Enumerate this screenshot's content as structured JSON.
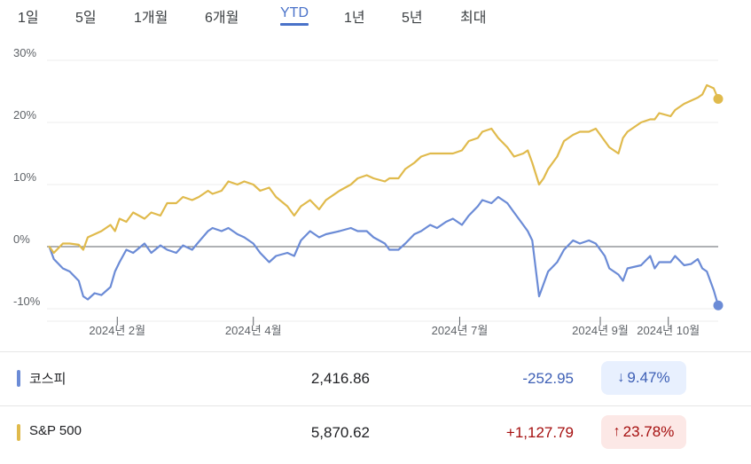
{
  "tabs": [
    {
      "label": "1일",
      "active": false
    },
    {
      "label": "5일",
      "active": false
    },
    {
      "label": "1개월",
      "active": false
    },
    {
      "label": "6개월",
      "active": false
    },
    {
      "label": "YTD",
      "active": true
    },
    {
      "label": "1년",
      "active": false
    },
    {
      "label": "5년",
      "active": false
    },
    {
      "label": "최대",
      "active": false
    }
  ],
  "chart_data": {
    "type": "line",
    "xlim": [
      "2024-01-01",
      "2024-10-23"
    ],
    "ylim": [
      -10,
      30
    ],
    "y_ticks": [
      {
        "value": 30,
        "label": "30%"
      },
      {
        "value": 20,
        "label": "20%"
      },
      {
        "value": 10,
        "label": "10%"
      },
      {
        "value": 0,
        "label": "0%"
      },
      {
        "value": -10,
        "label": "-10%"
      }
    ],
    "x_ticks": [
      {
        "date": "2024-02-01",
        "label": "2024년 2월"
      },
      {
        "date": "2024-04-01",
        "label": "2024년 4월"
      },
      {
        "date": "2024-07-01",
        "label": "2024년 7월"
      },
      {
        "date": "2024-09-01",
        "label": "2024년 9월"
      },
      {
        "date": "2024-10-01",
        "label": "2024년 10월"
      }
    ],
    "grid": true,
    "series": [
      {
        "name": "코스피",
        "color": "#6b8bd6",
        "points": [
          [
            "2024-01-02",
            0
          ],
          [
            "2024-01-04",
            -2.0
          ],
          [
            "2024-01-08",
            -3.5
          ],
          [
            "2024-01-11",
            -4.0
          ],
          [
            "2024-01-15",
            -5.5
          ],
          [
            "2024-01-17",
            -8.0
          ],
          [
            "2024-01-19",
            -8.5
          ],
          [
            "2024-01-22",
            -7.5
          ],
          [
            "2024-01-25",
            -7.8
          ],
          [
            "2024-01-29",
            -6.5
          ],
          [
            "2024-01-31",
            -4.0
          ],
          [
            "2024-02-02",
            -2.5
          ],
          [
            "2024-02-05",
            -0.5
          ],
          [
            "2024-02-08",
            -1.0
          ],
          [
            "2024-02-13",
            0.5
          ],
          [
            "2024-02-16",
            -1.0
          ],
          [
            "2024-02-20",
            0.2
          ],
          [
            "2024-02-23",
            -0.5
          ],
          [
            "2024-02-27",
            -1.0
          ],
          [
            "2024-03-01",
            0.2
          ],
          [
            "2024-03-05",
            -0.5
          ],
          [
            "2024-03-08",
            0.8
          ],
          [
            "2024-03-12",
            2.5
          ],
          [
            "2024-03-14",
            3.0
          ],
          [
            "2024-03-18",
            2.5
          ],
          [
            "2024-03-21",
            3.0
          ],
          [
            "2024-03-25",
            2.0
          ],
          [
            "2024-03-28",
            1.5
          ],
          [
            "2024-04-01",
            0.5
          ],
          [
            "2024-04-04",
            -1.0
          ],
          [
            "2024-04-08",
            -2.5
          ],
          [
            "2024-04-11",
            -1.5
          ],
          [
            "2024-04-16",
            -1.0
          ],
          [
            "2024-04-19",
            -1.5
          ],
          [
            "2024-04-22",
            1.0
          ],
          [
            "2024-04-26",
            2.5
          ],
          [
            "2024-04-30",
            1.5
          ],
          [
            "2024-05-03",
            2.0
          ],
          [
            "2024-05-09",
            2.5
          ],
          [
            "2024-05-14",
            3.0
          ],
          [
            "2024-05-17",
            2.5
          ],
          [
            "2024-05-21",
            2.5
          ],
          [
            "2024-05-24",
            1.5
          ],
          [
            "2024-05-29",
            0.5
          ],
          [
            "2024-05-31",
            -0.5
          ],
          [
            "2024-06-04",
            -0.5
          ],
          [
            "2024-06-07",
            0.5
          ],
          [
            "2024-06-11",
            2.0
          ],
          [
            "2024-06-14",
            2.5
          ],
          [
            "2024-06-18",
            3.5
          ],
          [
            "2024-06-21",
            3.0
          ],
          [
            "2024-06-25",
            4.0
          ],
          [
            "2024-06-28",
            4.5
          ],
          [
            "2024-07-02",
            3.5
          ],
          [
            "2024-07-05",
            5.0
          ],
          [
            "2024-07-09",
            6.5
          ],
          [
            "2024-07-11",
            7.5
          ],
          [
            "2024-07-15",
            7.0
          ],
          [
            "2024-07-18",
            8.0
          ],
          [
            "2024-07-22",
            7.0
          ],
          [
            "2024-07-25",
            5.5
          ],
          [
            "2024-07-29",
            3.5
          ],
          [
            "2024-07-31",
            2.5
          ],
          [
            "2024-08-02",
            1.0
          ],
          [
            "2024-08-05",
            -8.0
          ],
          [
            "2024-08-07",
            -6.0
          ],
          [
            "2024-08-09",
            -4.0
          ],
          [
            "2024-08-13",
            -2.5
          ],
          [
            "2024-08-16",
            -0.5
          ],
          [
            "2024-08-20",
            1.0
          ],
          [
            "2024-08-23",
            0.5
          ],
          [
            "2024-08-27",
            1.0
          ],
          [
            "2024-08-30",
            0.5
          ],
          [
            "2024-09-03",
            -1.5
          ],
          [
            "2024-09-05",
            -3.5
          ],
          [
            "2024-09-09",
            -4.5
          ],
          [
            "2024-09-11",
            -5.5
          ],
          [
            "2024-09-13",
            -3.5
          ],
          [
            "2024-09-19",
            -3.0
          ],
          [
            "2024-09-23",
            -1.5
          ],
          [
            "2024-09-25",
            -3.5
          ],
          [
            "2024-09-27",
            -2.5
          ],
          [
            "2024-10-02",
            -2.5
          ],
          [
            "2024-10-04",
            -1.5
          ],
          [
            "2024-10-08",
            -3.0
          ],
          [
            "2024-10-11",
            -2.8
          ],
          [
            "2024-10-14",
            -2.0
          ],
          [
            "2024-10-16",
            -3.5
          ],
          [
            "2024-10-18",
            -4.0
          ],
          [
            "2024-10-21",
            -7.0
          ],
          [
            "2024-10-23",
            -9.47
          ]
        ]
      },
      {
        "name": "S&P 500",
        "color": "#e0ba4c",
        "points": [
          [
            "2024-01-02",
            0
          ],
          [
            "2024-01-04",
            -1.0
          ],
          [
            "2024-01-08",
            0.5
          ],
          [
            "2024-01-11",
            0.5
          ],
          [
            "2024-01-15",
            0.3
          ],
          [
            "2024-01-17",
            -0.5
          ],
          [
            "2024-01-19",
            1.5
          ],
          [
            "2024-01-22",
            2.0
          ],
          [
            "2024-01-25",
            2.5
          ],
          [
            "2024-01-29",
            3.5
          ],
          [
            "2024-01-31",
            2.5
          ],
          [
            "2024-02-02",
            4.5
          ],
          [
            "2024-02-05",
            4.0
          ],
          [
            "2024-02-08",
            5.5
          ],
          [
            "2024-02-13",
            4.5
          ],
          [
            "2024-02-16",
            5.5
          ],
          [
            "2024-02-20",
            5.0
          ],
          [
            "2024-02-23",
            7.0
          ],
          [
            "2024-02-27",
            7.0
          ],
          [
            "2024-03-01",
            8.0
          ],
          [
            "2024-03-05",
            7.5
          ],
          [
            "2024-03-08",
            8.0
          ],
          [
            "2024-03-12",
            9.0
          ],
          [
            "2024-03-14",
            8.5
          ],
          [
            "2024-03-18",
            9.0
          ],
          [
            "2024-03-21",
            10.5
          ],
          [
            "2024-03-25",
            10.0
          ],
          [
            "2024-03-28",
            10.5
          ],
          [
            "2024-04-01",
            10.0
          ],
          [
            "2024-04-04",
            9.0
          ],
          [
            "2024-04-08",
            9.5
          ],
          [
            "2024-04-11",
            8.0
          ],
          [
            "2024-04-16",
            6.5
          ],
          [
            "2024-04-19",
            5.0
          ],
          [
            "2024-04-22",
            6.5
          ],
          [
            "2024-04-26",
            7.5
          ],
          [
            "2024-04-30",
            6.0
          ],
          [
            "2024-05-03",
            7.5
          ],
          [
            "2024-05-09",
            9.0
          ],
          [
            "2024-05-14",
            10.0
          ],
          [
            "2024-05-17",
            11.0
          ],
          [
            "2024-05-21",
            11.5
          ],
          [
            "2024-05-24",
            11.0
          ],
          [
            "2024-05-29",
            10.5
          ],
          [
            "2024-05-31",
            11.0
          ],
          [
            "2024-06-04",
            11.0
          ],
          [
            "2024-06-07",
            12.5
          ],
          [
            "2024-06-11",
            13.5
          ],
          [
            "2024-06-14",
            14.5
          ],
          [
            "2024-06-18",
            15.0
          ],
          [
            "2024-06-21",
            15.0
          ],
          [
            "2024-06-25",
            15.0
          ],
          [
            "2024-06-28",
            15.0
          ],
          [
            "2024-07-02",
            15.5
          ],
          [
            "2024-07-05",
            17.0
          ],
          [
            "2024-07-09",
            17.5
          ],
          [
            "2024-07-11",
            18.5
          ],
          [
            "2024-07-15",
            19.0
          ],
          [
            "2024-07-18",
            17.5
          ],
          [
            "2024-07-22",
            16.0
          ],
          [
            "2024-07-25",
            14.5
          ],
          [
            "2024-07-29",
            15.0
          ],
          [
            "2024-07-31",
            15.5
          ],
          [
            "2024-08-02",
            13.5
          ],
          [
            "2024-08-05",
            10.0
          ],
          [
            "2024-08-07",
            11.0
          ],
          [
            "2024-08-09",
            12.5
          ],
          [
            "2024-08-13",
            14.5
          ],
          [
            "2024-08-16",
            17.0
          ],
          [
            "2024-08-20",
            18.0
          ],
          [
            "2024-08-23",
            18.5
          ],
          [
            "2024-08-27",
            18.5
          ],
          [
            "2024-08-30",
            19.0
          ],
          [
            "2024-09-03",
            17.0
          ],
          [
            "2024-09-05",
            16.0
          ],
          [
            "2024-09-09",
            15.0
          ],
          [
            "2024-09-11",
            17.5
          ],
          [
            "2024-09-13",
            18.5
          ],
          [
            "2024-09-19",
            20.0
          ],
          [
            "2024-09-23",
            20.5
          ],
          [
            "2024-09-25",
            20.5
          ],
          [
            "2024-09-27",
            21.5
          ],
          [
            "2024-10-02",
            21.0
          ],
          [
            "2024-10-04",
            22.0
          ],
          [
            "2024-10-08",
            23.0
          ],
          [
            "2024-10-11",
            23.5
          ],
          [
            "2024-10-14",
            24.0
          ],
          [
            "2024-10-16",
            24.5
          ],
          [
            "2024-10-18",
            26.0
          ],
          [
            "2024-10-21",
            25.5
          ],
          [
            "2024-10-23",
            23.78
          ]
        ]
      }
    ]
  },
  "rows": [
    {
      "name": "코스피",
      "color": "#6b8bd6",
      "price": "2,416.86",
      "change": "-252.95",
      "change_color": "#3d5fb5",
      "percent": "9.47%",
      "direction": "down",
      "arrow": "↓"
    },
    {
      "name": "S&P 500",
      "color": "#e0ba4c",
      "price": "5,870.62",
      "change": "+1,127.79",
      "change_color": "#a50e0e",
      "percent": "23.78%",
      "direction": "up",
      "arrow": "↑"
    }
  ]
}
